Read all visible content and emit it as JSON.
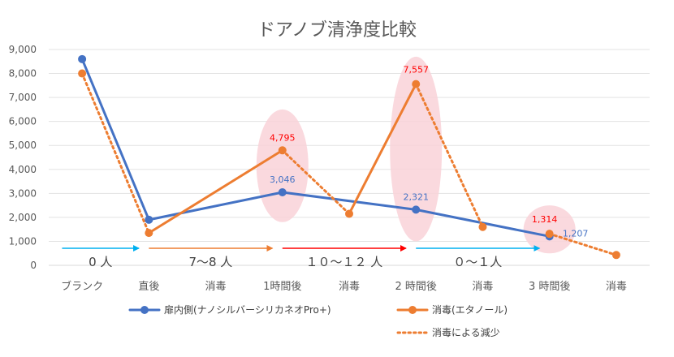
{
  "chart_data": {
    "type": "line",
    "title": "ドアノブ清浄度比較",
    "categories": [
      "ブランク",
      "直後",
      "消毒",
      "1時間後",
      "消毒",
      "2 時間後",
      "消毒",
      "3 時間後",
      "消毒"
    ],
    "ylim": [
      0,
      9000
    ],
    "yticks": [
      0,
      1000,
      2000,
      3000,
      4000,
      5000,
      6000,
      7000,
      8000,
      9000
    ],
    "ytick_labels": [
      "0",
      "1,000",
      "2,000",
      "3,000",
      "4,000",
      "5,000",
      "6,000",
      "7,000",
      "8,000",
      "9,000"
    ],
    "grid": true,
    "series": [
      {
        "name": "扉内側(ナノシルバーシリカネオPro+)",
        "color": "#4472c4",
        "style": "solid",
        "points": [
          [
            0,
            8600
          ],
          [
            1,
            1900
          ],
          [
            3,
            3046
          ],
          [
            5,
            2321
          ],
          [
            7,
            1207
          ]
        ]
      },
      {
        "name": "消毒(エタノール)",
        "color": "#ed7d31",
        "style": "solid",
        "points": [
          [
            0,
            8000
          ],
          [
            1,
            1350
          ],
          [
            3,
            4795
          ],
          [
            4,
            2150
          ],
          [
            5,
            7557
          ],
          [
            6,
            1600
          ],
          [
            7,
            1314
          ],
          [
            8,
            430
          ]
        ]
      },
      {
        "name": "消毒による減少",
        "color": "#ed7d31",
        "style": "dotted",
        "segments": [
          [
            [
              0,
              8000
            ],
            [
              1,
              1350
            ]
          ],
          [
            [
              3,
              4795
            ],
            [
              4,
              2150
            ]
          ],
          [
            [
              5,
              7557
            ],
            [
              6,
              1600
            ]
          ],
          [
            [
              7,
              1314
            ],
            [
              8,
              430
            ]
          ]
        ]
      }
    ],
    "data_labels": [
      {
        "text": "4,795",
        "x": 3,
        "y": 4795,
        "color": "#ff0000"
      },
      {
        "text": "3,046",
        "x": 3,
        "y": 3046,
        "color": "#4472c4"
      },
      {
        "text": "7,557",
        "x": 5,
        "y": 7557,
        "color": "#ff0000"
      },
      {
        "text": "2,321",
        "x": 5,
        "y": 2321,
        "color": "#4472c4"
      },
      {
        "text": "1,314",
        "x": 7,
        "y": 1314,
        "color": "#ff0000"
      },
      {
        "text": "1,207",
        "x": 7,
        "y": 1207,
        "color": "#4472c4"
      }
    ],
    "highlights": [
      {
        "x": 3,
        "y_range": [
          1800,
          6500
        ]
      },
      {
        "x": 5,
        "y_range": [
          1000,
          8700
        ]
      },
      {
        "x": 7,
        "y_range": [
          500,
          2500
        ]
      }
    ],
    "periods": [
      {
        "label": "0 人",
        "from": -0.3,
        "to": 0.85,
        "color": "#00b0f0"
      },
      {
        "label": "7～8 人",
        "from": 1.0,
        "to": 2.85,
        "color": "#ed7d31"
      },
      {
        "label": "１０～１２ 人",
        "from": 3.0,
        "to": 4.85,
        "color": "#ff0000"
      },
      {
        "label": "０～１人",
        "from": 5.0,
        "to": 6.85,
        "color": "#00b0f0"
      }
    ],
    "legend_position": "bottom"
  }
}
